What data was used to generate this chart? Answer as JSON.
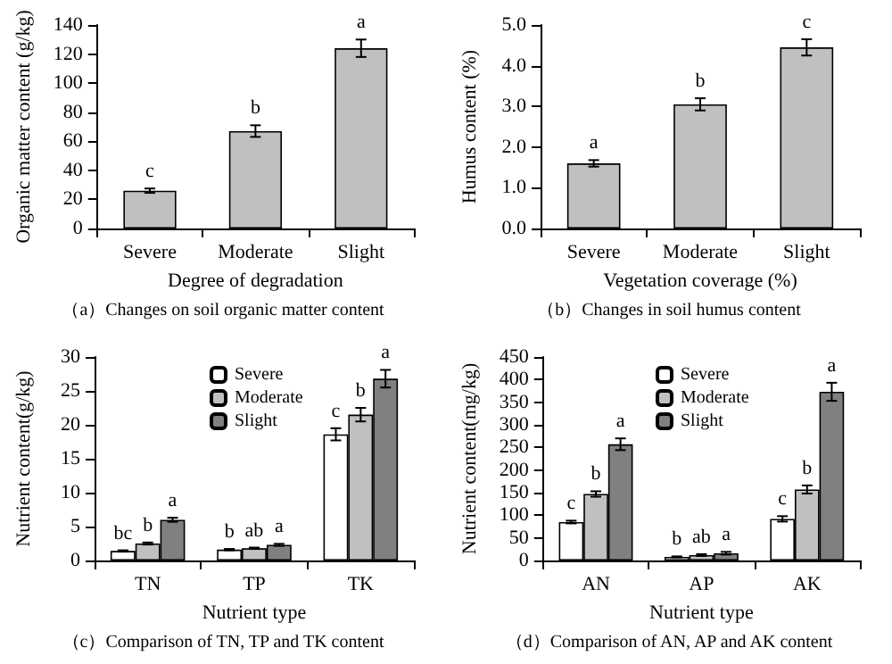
{
  "chart_data": [
    {
      "type": "bar",
      "title": "（a）Changes on soil organic matter content",
      "xlabel": "Degree of degradation",
      "ylabel": "Organic matter content (g/kg)",
      "categories": [
        "Severe",
        "Moderate",
        "Slight"
      ],
      "values": [
        26,
        67,
        124
      ],
      "errors": [
        1.5,
        4,
        6
      ],
      "color": "#c0c0c0",
      "ylim": [
        0,
        140
      ],
      "yticks": [
        0,
        20,
        40,
        60,
        80,
        100,
        120,
        140
      ],
      "grid": false,
      "legend": false,
      "annotations": [
        "c",
        "b",
        "a"
      ]
    },
    {
      "type": "bar",
      "title": "（b）Changes in soil humus content",
      "xlabel": "Vegetation coverage (%)",
      "ylabel": "Humus content (%)",
      "categories": [
        "Severe",
        "Moderate",
        "Slight"
      ],
      "values": [
        1.6,
        3.05,
        4.45
      ],
      "errors": [
        0.08,
        0.15,
        0.2
      ],
      "color": "#c0c0c0",
      "ylim": [
        0,
        5
      ],
      "yticks": [
        {
          "value": 0,
          "label": "0.0"
        },
        {
          "value": 1,
          "label": "1.0"
        },
        {
          "value": 2,
          "label": "2.0"
        },
        {
          "value": 3,
          "label": "3.0"
        },
        {
          "value": 4,
          "label": "4.0"
        },
        {
          "value": 5,
          "label": "5.0"
        }
      ],
      "grid": false,
      "legend": false,
      "annotations": [
        "a",
        "b",
        "c"
      ]
    },
    {
      "type": "bar",
      "title": "（c）Comparison of TN, TP and TK content",
      "xlabel": "Nutrient type",
      "ylabel": "Nutrient content(g/kg)",
      "categories": [
        "TN",
        "TP",
        "TK"
      ],
      "ylim": [
        0,
        30
      ],
      "yticks": [
        0,
        5,
        10,
        15,
        20,
        25,
        30
      ],
      "grid": false,
      "legend": "top",
      "series": [
        {
          "name": "Severe",
          "color": "#ffffff",
          "values": [
            1.4,
            1.6,
            18.6
          ],
          "errors": [
            0.1,
            0.1,
            0.9
          ]
        },
        {
          "name": "Moderate",
          "color": "#c0c0c0",
          "values": [
            2.5,
            1.8,
            21.5
          ],
          "errors": [
            0.15,
            0.1,
            1.0
          ]
        },
        {
          "name": "Slight",
          "color": "#808080",
          "values": [
            6.0,
            2.3,
            26.8
          ],
          "errors": [
            0.3,
            0.15,
            1.3
          ]
        }
      ],
      "annotations": [
        "bc",
        "b",
        "a",
        "b",
        "ab",
        "a",
        "c",
        "b",
        "a"
      ]
    },
    {
      "type": "bar",
      "title": "（d）Comparison of AN, AP and AK content",
      "xlabel": "Nutrient type",
      "ylabel": "Nutrient content(mg/kg)",
      "categories": [
        "AN",
        "AP",
        "AK"
      ],
      "ylim": [
        0,
        450
      ],
      "yticks": [
        0,
        50,
        100,
        150,
        200,
        250,
        300,
        350,
        400,
        450
      ],
      "grid": false,
      "legend": "top",
      "series": [
        {
          "name": "Severe",
          "color": "#ffffff",
          "values": [
            85,
            8,
            92
          ],
          "errors": [
            3,
            1,
            6
          ]
        },
        {
          "name": "Moderate",
          "color": "#c0c0c0",
          "values": [
            147,
            12,
            157
          ],
          "errors": [
            6,
            2,
            9
          ]
        },
        {
          "name": "Slight",
          "color": "#808080",
          "values": [
            257,
            16,
            373
          ],
          "errors": [
            13,
            3,
            20
          ]
        }
      ],
      "annotations": [
        "c",
        "b",
        "a",
        "b",
        "ab",
        "a",
        "c",
        "b",
        "a"
      ]
    }
  ]
}
